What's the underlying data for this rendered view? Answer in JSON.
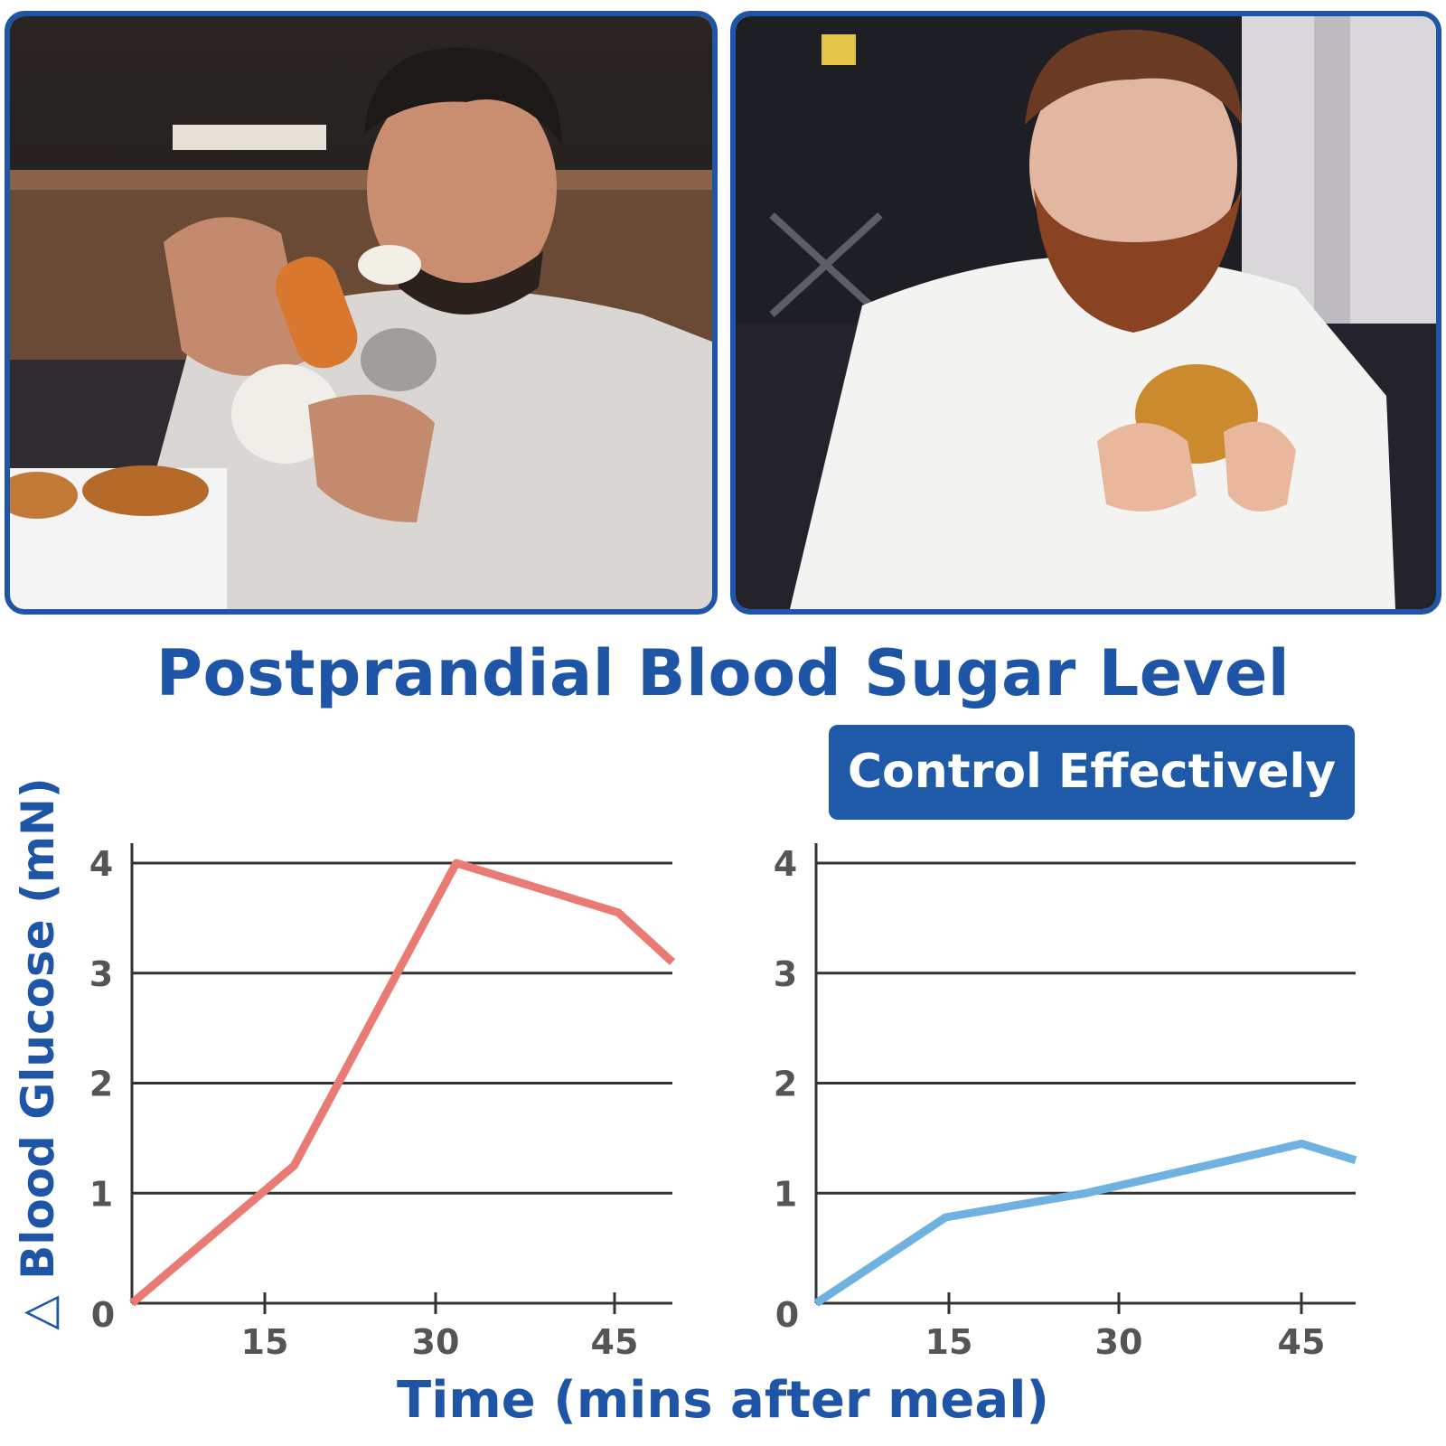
{
  "title": "Postprandial Blood Sugar Level",
  "badge": "Control Effectively",
  "ylabel": "△ Blood Glucose (mN)",
  "xlabel": "Time (mins after meal)",
  "colors": {
    "brand": "#1f55a6",
    "without_control": "#e97b74",
    "with_control": "#6fb1e0",
    "grid": "#333333"
  },
  "chart_data": [
    {
      "type": "line",
      "x": [
        0,
        15,
        30,
        45,
        50
      ],
      "series": [
        {
          "values": [
            0,
            1.25,
            4.0,
            3.55,
            3.1
          ],
          "color": "#e97b74"
        }
      ],
      "xticks": [
        "15",
        "30",
        "45"
      ],
      "yticks": [
        "0",
        "1",
        "2",
        "3",
        "4"
      ],
      "ylim": [
        0,
        4
      ],
      "grid": true
    },
    {
      "type": "line",
      "x": [
        0,
        12,
        25,
        45,
        50
      ],
      "series": [
        {
          "values": [
            0,
            0.78,
            1.0,
            1.45,
            1.3
          ],
          "color": "#6fb1e0"
        }
      ],
      "xticks": [
        "15",
        "30",
        "45"
      ],
      "yticks": [
        "0",
        "1",
        "2",
        "3",
        "4"
      ],
      "ylim": [
        0,
        4
      ],
      "grid": true
    }
  ]
}
